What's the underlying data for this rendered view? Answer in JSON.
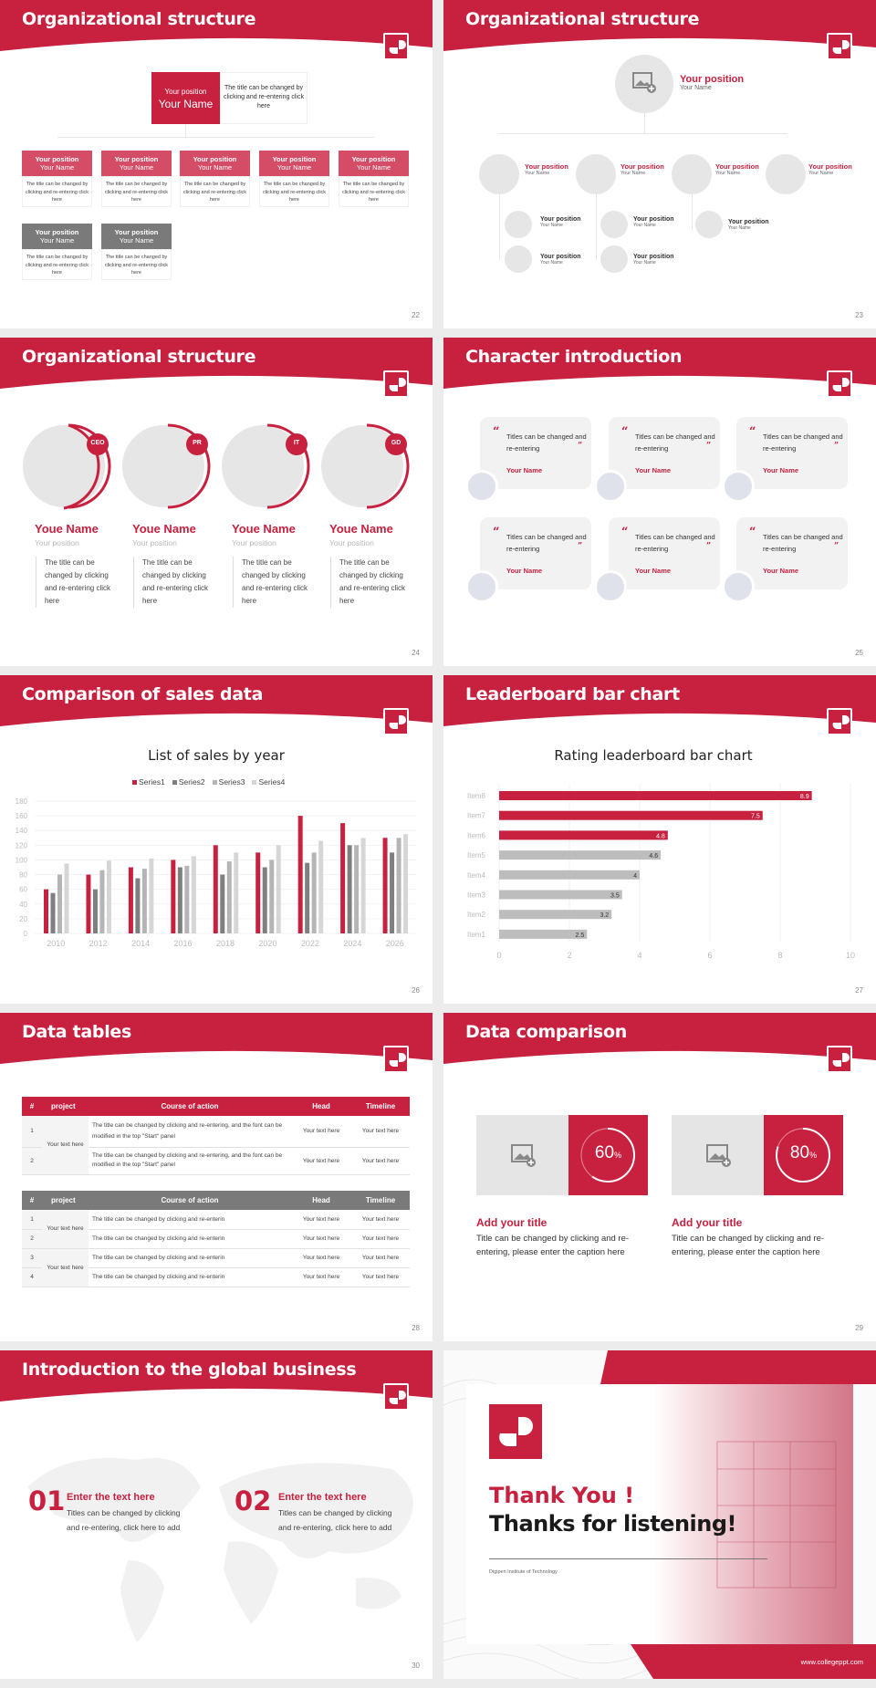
{
  "colors": {
    "accent": "#c8203f",
    "gray_header": "#7a7a7a",
    "light_gray": "#e6e6e6"
  },
  "slides": [
    {
      "page": "22",
      "title": "Organizational structure",
      "top": {
        "position": "Your position",
        "name": "Your Name",
        "desc": "The title can be changed by clicking and re-entering click here"
      },
      "boxes": [
        {
          "position": "Your position",
          "name": "Your Name",
          "desc": "The title can be changed by clicking and re-entering click here"
        },
        {
          "position": "Your position",
          "name": "Your Name",
          "desc": "The title can be changed by clicking and re-entering click here"
        },
        {
          "position": "Your position",
          "name": "Your Name",
          "desc": "The title can be changed by clicking and re-entering click here"
        },
        {
          "position": "Your position",
          "name": "Your Name",
          "desc": "The title can be changed by clicking and re-entering click here"
        },
        {
          "position": "Your position",
          "name": "Your Name",
          "desc": "The title can be changed by clicking and re-entering click here"
        },
        {
          "position": "Your position",
          "name": "Your Name",
          "desc": "The title can be changed by clicking and re-entering click here"
        },
        {
          "position": "Your position",
          "name": "Your Name",
          "desc": "The title can be changed by clicking and re-entering click here"
        }
      ]
    },
    {
      "page": "23",
      "title": "Organizational structure",
      "top": {
        "position": "Your position",
        "name": "Your Name"
      },
      "level2": [
        {
          "position": "Your position",
          "name": "Your Name"
        },
        {
          "position": "Your position",
          "name": "Your Name"
        },
        {
          "position": "Your position",
          "name": "Your Name"
        },
        {
          "position": "Your position",
          "name": "Your Name"
        }
      ],
      "level3": [
        {
          "position": "Your position",
          "name": "Your Name"
        },
        {
          "position": "Your position",
          "name": "Your Name"
        },
        {
          "position": "Your position",
          "name": "Your Name"
        },
        {
          "position": "Your position",
          "name": "Your Name"
        },
        {
          "position": "Your position",
          "name": "Your Name"
        }
      ]
    },
    {
      "page": "24",
      "title": "Organizational structure",
      "people": [
        {
          "badge": "CEO",
          "name": "Youe Name",
          "position": "Your position",
          "desc": "The title can be changed by clicking and re-entering click here"
        },
        {
          "badge": "PR",
          "name": "Youe Name",
          "position": "Your position",
          "desc": "The title can be changed by clicking and re-entering click here"
        },
        {
          "badge": "IT",
          "name": "Youe Name",
          "position": "Your position",
          "desc": "The title can be changed by clicking and re-entering click here"
        },
        {
          "badge": "GD",
          "name": "Youe Name",
          "position": "Your position",
          "desc": "The title can be changed by clicking and re-entering click here"
        }
      ]
    },
    {
      "page": "25",
      "title": "Character introduction",
      "cards": [
        {
          "quote": "Titles can be changed and re-entering",
          "name": "Your Name"
        },
        {
          "quote": "Titles can be changed and re-entering",
          "name": "Your Name"
        },
        {
          "quote": "Titles can be changed and re-entering",
          "name": "Your Name"
        },
        {
          "quote": "Titles can be changed and re-entering",
          "name": "Your Name"
        },
        {
          "quote": "Titles can be changed and re-entering",
          "name": "Your Name"
        },
        {
          "quote": "Titles can be changed and re-entering",
          "name": "Your Name"
        }
      ]
    },
    {
      "page": "26",
      "title": "Comparison of sales data"
    },
    {
      "page": "27",
      "title": "Leaderboard bar chart"
    },
    {
      "page": "28",
      "title": "Data tables",
      "table1": {
        "headers": [
          "#",
          "project",
          "Course of action",
          "Head",
          "Timeline"
        ],
        "project": "Your text here",
        "rows": [
          {
            "n": "1",
            "action": "The title can be changed by clicking and re-entering, and the font can be modified in the top \"Start\" panel",
            "head": "Your text here",
            "timeline": "Your text here"
          },
          {
            "n": "2",
            "action": "The title can be changed by clicking and re-entering, and the font can be modified in the top \"Start\" panel",
            "head": "Your text here",
            "timeline": "Your text here"
          }
        ]
      },
      "table2": {
        "headers": [
          "#",
          "project",
          "Course of action",
          "Head",
          "Timeline"
        ],
        "projects": [
          "Your text here",
          "Your text here"
        ],
        "rows": [
          {
            "n": "1",
            "action": "The title can be changed by clicking and re-enterin",
            "head": "Your text here",
            "timeline": "Your text here"
          },
          {
            "n": "2",
            "action": "The title can be changed by clicking and re-enterin",
            "head": "Your text here",
            "timeline": "Your text here"
          },
          {
            "n": "3",
            "action": "The title can be changed by clicking and re-enterin",
            "head": "Your text here",
            "timeline": "Your text here"
          },
          {
            "n": "4",
            "action": "The title can be changed by clicking and re-enterin",
            "head": "Your text here",
            "timeline": "Your text here"
          }
        ]
      }
    },
    {
      "page": "29",
      "title": "Data comparison",
      "items": [
        {
          "percent": "60",
          "unit": "%",
          "title": "Add your title",
          "desc": "Title can be changed by clicking and re-entering, please enter the caption here"
        },
        {
          "percent": "80",
          "unit": "%",
          "title": "Add your title",
          "desc": "Title can be changed by clicking and re-entering, please enter the caption here"
        }
      ]
    },
    {
      "page": "30",
      "title": "Introduction to the global business",
      "items": [
        {
          "num": "01",
          "title": "Enter the text here",
          "desc": "Titles can be changed by clicking and re-entering, click here to add"
        },
        {
          "num": "02",
          "title": "Enter the text here",
          "desc": "Titles can be changed by clicking and re-entering, click here to add"
        }
      ]
    },
    {
      "thanks": "Thank You !",
      "listening": "Thanks for listening!",
      "institute": "Digipen Institute of Technology",
      "url": "www.collegeppt.com"
    }
  ],
  "chart_data": [
    {
      "type": "bar",
      "title": "List of sales by year",
      "xlabel": "",
      "ylabel": "",
      "categories": [
        "2010",
        "2012",
        "2014",
        "2016",
        "2018",
        "2020",
        "2022",
        "2024",
        "2026"
      ],
      "series": [
        {
          "name": "Series1",
          "color": "#c8203f",
          "values": [
            60,
            80,
            90,
            100,
            120,
            110,
            160,
            150,
            130
          ]
        },
        {
          "name": "Series2",
          "color": "#7f7f7f",
          "values": [
            55,
            60,
            75,
            90,
            80,
            90,
            96,
            120,
            110
          ]
        },
        {
          "name": "Series3",
          "color": "#b5b5b5",
          "values": [
            80,
            86,
            88,
            92,
            98,
            100,
            110,
            120,
            130
          ]
        },
        {
          "name": "Series4",
          "color": "#d6d6d6",
          "values": [
            95,
            99,
            102,
            105,
            110,
            120,
            126,
            130,
            135
          ]
        }
      ],
      "ylim": [
        0,
        180
      ],
      "yticks": [
        0,
        20,
        40,
        60,
        80,
        100,
        120,
        140,
        160,
        180
      ],
      "grid": true,
      "legend": "top"
    },
    {
      "type": "bar",
      "orientation": "horizontal",
      "title": "Rating leaderboard bar chart",
      "categories": [
        "Item8",
        "Item7",
        "Item6",
        "Item5",
        "Item4",
        "Item3",
        "Item2",
        "Item1"
      ],
      "values": [
        8.9,
        7.5,
        4.8,
        4.6,
        4,
        3.5,
        3.2,
        2.5
      ],
      "labels": [
        "8.9",
        "7.5",
        "4.8",
        "4.6",
        "4",
        "3.5",
        "3.2",
        "2.5"
      ],
      "highlight_count": 3,
      "xlim": [
        0,
        10
      ],
      "xticks": [
        "0",
        "2",
        "4",
        "6",
        "8",
        "10"
      ],
      "grid": true
    }
  ]
}
